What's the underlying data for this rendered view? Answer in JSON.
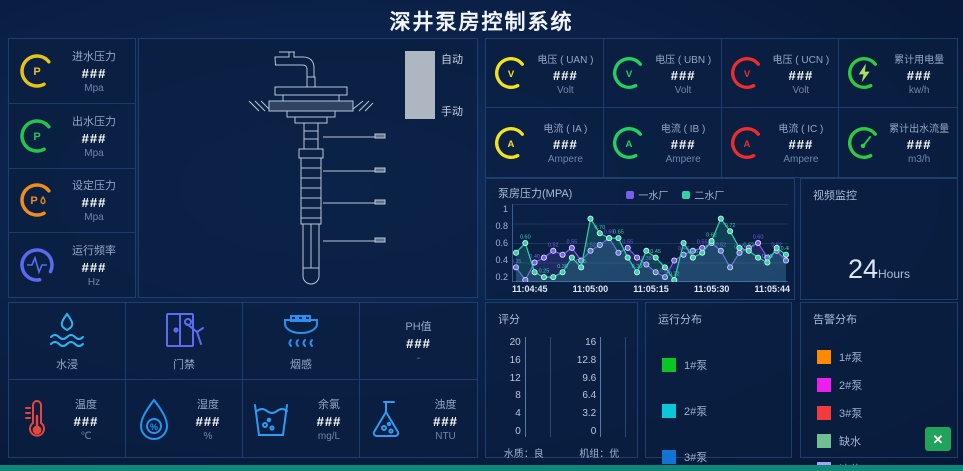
{
  "app": {
    "title": "深井泵房控制系统"
  },
  "pump_panel": {
    "legend": {
      "auto": "自动",
      "manual": "手动"
    }
  },
  "left_gauges": {
    "items": [
      {
        "label": "进水压力",
        "value": "###",
        "unit": "Mpa",
        "symbol": "P",
        "color": "#e6c317",
        "icon": "pressure-gauge-icon"
      },
      {
        "label": "出水压力",
        "value": "###",
        "unit": "Mpa",
        "symbol": "P",
        "color": "#27c24c",
        "icon": "pressure-gauge-icon"
      },
      {
        "label": "设定压力",
        "value": "###",
        "unit": "Mpa",
        "symbol": "P",
        "color": "#f08c1e",
        "icon": "pressure-droplet-gauge-icon"
      },
      {
        "label": "运行频率",
        "value": "###",
        "unit": "Hz",
        "symbol": "",
        "color": "#5b6bf0",
        "icon": "pulse-wave-gauge-icon"
      }
    ]
  },
  "elec_gauges": {
    "items": [
      {
        "label": "电压 ( UAN )",
        "value": "###",
        "unit": "Volt",
        "symbol": "V",
        "color": "#f2e31c",
        "icon": "voltage-gauge-icon"
      },
      {
        "label": "电压 ( UBN )",
        "value": "###",
        "unit": "Volt",
        "symbol": "V",
        "color": "#23d161",
        "icon": "voltage-gauge-icon"
      },
      {
        "label": "电压 ( UCN )",
        "value": "###",
        "unit": "Volt",
        "symbol": "V",
        "color": "#ef2d2d",
        "icon": "voltage-gauge-icon"
      },
      {
        "label": "累计用电量",
        "value": "###",
        "unit": "kw/h",
        "symbol": "",
        "color": "#2ecb3f",
        "icon": "lightning-gauge-icon"
      },
      {
        "label": "电流 ( IA )",
        "value": "###",
        "unit": "Ampere",
        "symbol": "A",
        "color": "#f2e31c",
        "icon": "current-gauge-icon"
      },
      {
        "label": "电流 ( IB )",
        "value": "###",
        "unit": "Ampere",
        "symbol": "A",
        "color": "#23d161",
        "icon": "current-gauge-icon"
      },
      {
        "label": "电流 ( IC )",
        "value": "###",
        "unit": "Ampere",
        "symbol": "A",
        "color": "#ef2d2d",
        "icon": "current-gauge-icon"
      },
      {
        "label": "累计出水流量",
        "value": "###",
        "unit": "m3/h",
        "symbol": "",
        "color": "#2ecb3f",
        "icon": "flow-meter-gauge-icon"
      }
    ]
  },
  "chart_data": {
    "type": "line",
    "title": "泵房压力(MPA)",
    "ylabel": "MPA",
    "ylim": [
      0.2,
      1.0
    ],
    "y_ticks": [
      "1",
      "0.8",
      "0.6",
      "0.4",
      "0.2"
    ],
    "x_tick_labels": [
      "11:04:45",
      "11:05:00",
      "11:05:15",
      "11:05:30",
      "11:05:44"
    ],
    "grid": true,
    "legend_position": "top",
    "series": [
      {
        "name": "一水厂",
        "color": "#7a5cf0",
        "values": [
          0.35,
          0.22,
          0.4,
          0.45,
          0.52,
          0.48,
          0.55,
          0.42,
          0.52,
          0.58,
          0.65,
          0.5,
          0.55,
          0.45,
          0.38,
          0.3,
          0.25,
          0.42,
          0.48,
          0.52,
          0.55,
          0.6,
          0.52,
          0.35,
          0.5,
          0.55,
          0.6,
          0.45,
          0.52,
          0.42
        ]
      },
      {
        "name": "二水厂",
        "color": "#2fd3a6",
        "values": [
          0.5,
          0.6,
          0.3,
          0.25,
          0.25,
          0.3,
          0.45,
          0.35,
          0.85,
          0.7,
          0.65,
          0.65,
          0.45,
          0.3,
          0.52,
          0.45,
          0.35,
          0.22,
          0.6,
          0.45,
          0.5,
          0.62,
          0.85,
          0.72,
          0.55,
          0.52,
          0.45,
          0.4,
          0.55,
          0.48
        ]
      }
    ]
  },
  "video": {
    "title": "视频监控",
    "hours_value": "24",
    "hours_unit": "Hours"
  },
  "env_sensors": {
    "row1": [
      {
        "label": "水浸",
        "icon": "water-immersion-icon",
        "color": "#29b6f6"
      },
      {
        "label": "门禁",
        "icon": "door-access-icon",
        "color": "#5c6bf2"
      },
      {
        "label": "烟感",
        "icon": "smoke-detector-icon",
        "color": "#2b8ff0"
      },
      {
        "label": "PH值",
        "value": "###",
        "unit": "-"
      }
    ],
    "row2": [
      {
        "label": "温度",
        "value": "###",
        "unit": "℃",
        "icon": "thermometer-icon",
        "color": "#e8453c"
      },
      {
        "label": "湿度",
        "value": "###",
        "unit": "%",
        "icon": "humidity-drop-icon",
        "color": "#2196f3"
      },
      {
        "label": "余氯",
        "value": "###",
        "unit": "mg/L",
        "icon": "chlorine-cup-icon",
        "color": "#2e9bf5"
      },
      {
        "label": "浊度",
        "value": "###",
        "unit": "NTU",
        "icon": "turbidity-flask-icon",
        "color": "#2e9bf5"
      }
    ]
  },
  "score_panel": {
    "title": "评分",
    "left_axis": {
      "ticks": [
        "20",
        "16",
        "12",
        "8",
        "4",
        "0"
      ],
      "caption": "水质：良"
    },
    "right_axis": {
      "ticks": [
        "16",
        "12.8",
        "9.6",
        "6.4",
        "3.2",
        "0"
      ],
      "caption": "机组：优"
    }
  },
  "run_distribution": {
    "title": "运行分布",
    "items": [
      {
        "label": "1#泵",
        "color": "#0ac623"
      },
      {
        "label": "2#泵",
        "color": "#0bc8d8"
      },
      {
        "label": "3#泵",
        "color": "#1273d2"
      }
    ]
  },
  "alarm_distribution": {
    "title": "告警分布",
    "items": [
      {
        "label": "1#泵",
        "color": "#ff8a00"
      },
      {
        "label": "2#泵",
        "color": "#ee1fee"
      },
      {
        "label": "3#泵",
        "color": "#f23c3c"
      },
      {
        "label": "缺水",
        "color": "#6fbf92"
      },
      {
        "label": "液位",
        "color": "#a3a3f2"
      }
    ],
    "expand_icon": "✕"
  }
}
